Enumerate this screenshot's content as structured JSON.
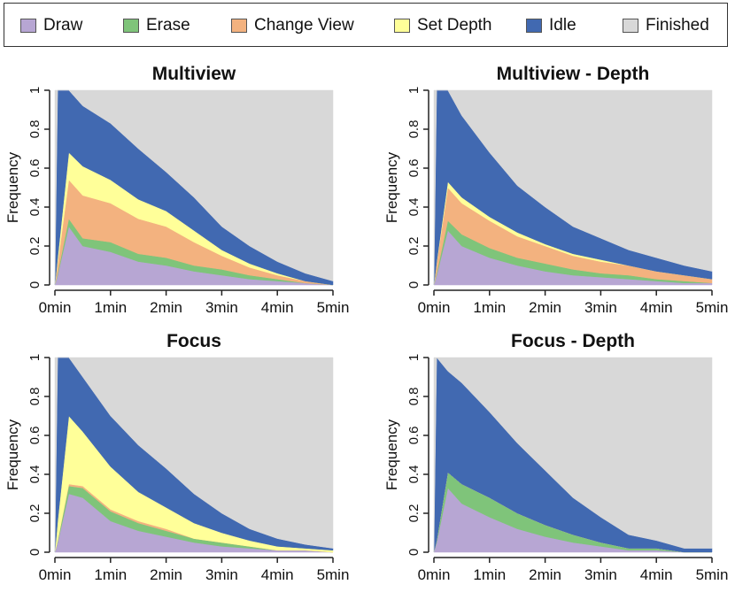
{
  "legend": [
    {
      "label": "Draw",
      "color": "#b7a6d3"
    },
    {
      "label": "Erase",
      "color": "#7fc47a"
    },
    {
      "label": "Change View",
      "color": "#f3b27f"
    },
    {
      "label": "Set Depth",
      "color": "#ffff99"
    },
    {
      "label": "Idle",
      "color": "#4169b1"
    },
    {
      "label": "Finished",
      "color": "#d8d8d8"
    }
  ],
  "chart_data": [
    {
      "type": "area",
      "title": "Multiview",
      "ylabel": "Frequency",
      "xlim": [
        0,
        5
      ],
      "ylim": [
        0,
        1
      ],
      "xticks": [
        "0min",
        "1min",
        "2min",
        "3min",
        "4min",
        "5min"
      ],
      "yticks": [
        "0",
        "0.2",
        "0.4",
        "0.6",
        "0.8",
        "1"
      ],
      "x": [
        0,
        0.05,
        0.25,
        0.5,
        1,
        1.5,
        2,
        2.5,
        3,
        3.5,
        4,
        4.5,
        5
      ],
      "series": [
        {
          "name": "Draw",
          "values": [
            0,
            0.05,
            0.3,
            0.2,
            0.17,
            0.12,
            0.1,
            0.07,
            0.05,
            0.03,
            0.02,
            0.01,
            0.0
          ]
        },
        {
          "name": "Erase",
          "values": [
            0,
            0.01,
            0.04,
            0.04,
            0.05,
            0.04,
            0.04,
            0.03,
            0.03,
            0.02,
            0.01,
            0.0,
            0.0
          ]
        },
        {
          "name": "Change View",
          "values": [
            0,
            0.05,
            0.2,
            0.22,
            0.2,
            0.18,
            0.16,
            0.12,
            0.07,
            0.04,
            0.02,
            0.01,
            0.0
          ]
        },
        {
          "name": "Set Depth",
          "values": [
            0,
            0.03,
            0.14,
            0.15,
            0.12,
            0.1,
            0.08,
            0.06,
            0.03,
            0.02,
            0.01,
            0.0,
            0.0
          ]
        },
        {
          "name": "Idle",
          "values": [
            0,
            0.86,
            0.32,
            0.31,
            0.29,
            0.26,
            0.2,
            0.17,
            0.12,
            0.09,
            0.06,
            0.04,
            0.02
          ]
        },
        {
          "name": "Finished",
          "values": [
            1,
            0,
            0,
            0.08,
            0.17,
            0.3,
            0.42,
            0.55,
            0.7,
            0.8,
            0.88,
            0.94,
            0.98
          ]
        }
      ]
    },
    {
      "type": "area",
      "title": "Multiview - Depth",
      "ylabel": "Frequency",
      "xlim": [
        0,
        5
      ],
      "ylim": [
        0,
        1
      ],
      "xticks": [
        "0min",
        "1min",
        "2min",
        "3min",
        "4min",
        "5min"
      ],
      "yticks": [
        "0",
        "0.2",
        "0.4",
        "0.6",
        "0.8",
        "1"
      ],
      "x": [
        0,
        0.05,
        0.25,
        0.5,
        1,
        1.5,
        2,
        2.5,
        3,
        3.5,
        4,
        4.5,
        5
      ],
      "series": [
        {
          "name": "Draw",
          "values": [
            0,
            0.05,
            0.28,
            0.2,
            0.14,
            0.1,
            0.07,
            0.05,
            0.04,
            0.03,
            0.02,
            0.01,
            0.01
          ]
        },
        {
          "name": "Erase",
          "values": [
            0,
            0.01,
            0.05,
            0.06,
            0.05,
            0.04,
            0.04,
            0.03,
            0.02,
            0.02,
            0.01,
            0.01,
            0.0
          ]
        },
        {
          "name": "Change View",
          "values": [
            0,
            0.05,
            0.17,
            0.16,
            0.14,
            0.11,
            0.09,
            0.07,
            0.06,
            0.05,
            0.04,
            0.03,
            0.02
          ]
        },
        {
          "name": "Set Depth",
          "values": [
            0,
            0.01,
            0.03,
            0.03,
            0.02,
            0.02,
            0.01,
            0.01,
            0.01,
            0.0,
            0.0,
            0.0,
            0.0
          ]
        },
        {
          "name": "Idle",
          "values": [
            0,
            0.88,
            0.47,
            0.42,
            0.33,
            0.24,
            0.19,
            0.14,
            0.11,
            0.08,
            0.07,
            0.05,
            0.04
          ]
        },
        {
          "name": "Finished",
          "values": [
            1,
            0,
            0,
            0.13,
            0.32,
            0.49,
            0.6,
            0.7,
            0.76,
            0.82,
            0.86,
            0.9,
            0.93
          ]
        }
      ]
    },
    {
      "type": "area",
      "title": "Focus",
      "ylabel": "Frequency",
      "xlim": [
        0,
        5
      ],
      "ylim": [
        0,
        1
      ],
      "xticks": [
        "0min",
        "1min",
        "2min",
        "3min",
        "4min",
        "5min"
      ],
      "yticks": [
        "0",
        "0.2",
        "0.4",
        "0.6",
        "0.8",
        "1"
      ],
      "x": [
        0,
        0.05,
        0.25,
        0.5,
        1,
        1.5,
        2,
        2.5,
        3,
        3.5,
        4,
        4.5,
        5
      ],
      "series": [
        {
          "name": "Draw",
          "values": [
            0,
            0.05,
            0.3,
            0.28,
            0.16,
            0.11,
            0.08,
            0.05,
            0.03,
            0.02,
            0.01,
            0.01,
            0.0
          ]
        },
        {
          "name": "Erase",
          "values": [
            0,
            0.01,
            0.04,
            0.05,
            0.05,
            0.04,
            0.03,
            0.02,
            0.02,
            0.01,
            0.0,
            0.0,
            0.0
          ]
        },
        {
          "name": "Change View",
          "values": [
            0,
            0.0,
            0.01,
            0.01,
            0.01,
            0.01,
            0.01,
            0.0,
            0.0,
            0.0,
            0.0,
            0.0,
            0.0
          ]
        },
        {
          "name": "Set Depth",
          "values": [
            0,
            0.1,
            0.35,
            0.28,
            0.22,
            0.15,
            0.11,
            0.08,
            0.05,
            0.03,
            0.02,
            0.01,
            0.01
          ]
        },
        {
          "name": "Idle",
          "values": [
            0,
            0.84,
            0.3,
            0.28,
            0.26,
            0.24,
            0.2,
            0.15,
            0.1,
            0.06,
            0.04,
            0.02,
            0.01
          ]
        },
        {
          "name": "Finished",
          "values": [
            1,
            0,
            0,
            0.1,
            0.3,
            0.45,
            0.57,
            0.7,
            0.8,
            0.88,
            0.93,
            0.96,
            0.98
          ]
        }
      ]
    },
    {
      "type": "area",
      "title": "Focus - Depth",
      "ylabel": "Frequency",
      "xlim": [
        0,
        5
      ],
      "ylim": [
        0,
        1
      ],
      "xticks": [
        "0min",
        "1min",
        "2min",
        "3min",
        "4min",
        "5min"
      ],
      "yticks": [
        "0",
        "0.2",
        "0.4",
        "0.6",
        "0.8",
        "1"
      ],
      "x": [
        0,
        0.05,
        0.25,
        0.5,
        1,
        1.5,
        2,
        2.5,
        3,
        3.5,
        4,
        4.5,
        5
      ],
      "series": [
        {
          "name": "Draw",
          "values": [
            0,
            0.05,
            0.33,
            0.25,
            0.18,
            0.12,
            0.08,
            0.05,
            0.03,
            0.01,
            0.01,
            0.0,
            0.0
          ]
        },
        {
          "name": "Erase",
          "values": [
            0,
            0.01,
            0.08,
            0.1,
            0.1,
            0.08,
            0.06,
            0.04,
            0.02,
            0.01,
            0.01,
            0.0,
            0.0
          ]
        },
        {
          "name": "Change View",
          "values": [
            0,
            0,
            0,
            0,
            0,
            0,
            0,
            0,
            0,
            0,
            0,
            0,
            0
          ]
        },
        {
          "name": "Set Depth",
          "values": [
            0,
            0,
            0,
            0,
            0,
            0,
            0,
            0,
            0,
            0,
            0,
            0,
            0
          ]
        },
        {
          "name": "Idle",
          "values": [
            0,
            0.94,
            0.52,
            0.52,
            0.44,
            0.36,
            0.28,
            0.19,
            0.13,
            0.07,
            0.04,
            0.02,
            0.02
          ]
        },
        {
          "name": "Finished",
          "values": [
            1,
            0,
            0.07,
            0.13,
            0.28,
            0.44,
            0.58,
            0.72,
            0.82,
            0.91,
            0.94,
            0.98,
            0.98
          ]
        }
      ]
    }
  ]
}
